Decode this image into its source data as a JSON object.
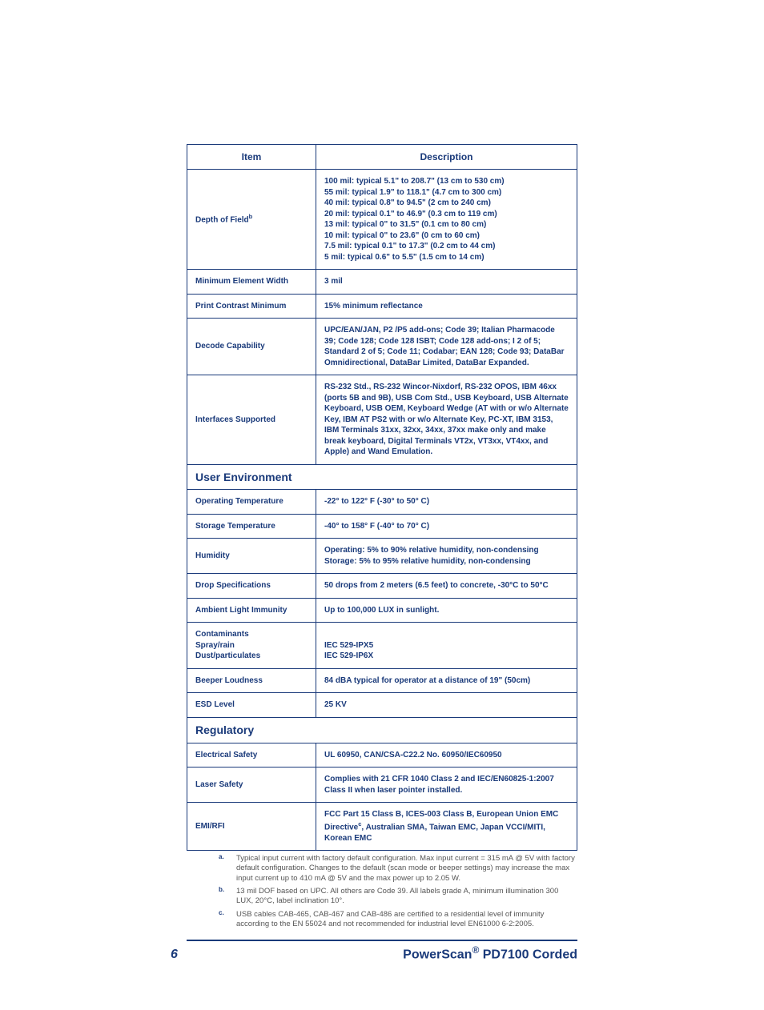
{
  "colors": {
    "brand": "#1a3a7a",
    "footnote_text": "#555555",
    "border": "#1a3a7a",
    "bg": "#ffffff"
  },
  "table": {
    "header": {
      "item": "Item",
      "description": "Description"
    },
    "rows": [
      {
        "item_html": "Depth of Field<sup>b</sup>",
        "desc_html": "100 mil: typical 5.1\" to 208.7\" (13 cm to 530 cm)<br>55 mil: typical 1.9\" to 118.1\" (4.7 cm to 300 cm)<br>40 mil: typical 0.8\" to 94.5\" (2 cm to 240 cm)<br>20 mil: typical 0.1\" to 46.9\" (0.3 cm to 119 cm)<br>13 mil: typical 0\" to 31.5\" (0.1 cm to 80 cm)<br>10 mil: typical 0\" to 23.6\" (0 cm to 60 cm)<br>7.5 mil: typical 0.1\" to 17.3\" (0.2 cm to 44 cm)<br>5 mil: typical 0.6\" to 5.5\" (1.5 cm to 14 cm)"
      },
      {
        "item": "Minimum Element Width",
        "desc": "3 mil"
      },
      {
        "item": "Print Contrast Minimum",
        "desc": "15% minimum reflectance"
      },
      {
        "item": "Decode Capability",
        "desc": "UPC/EAN/JAN, P2 /P5 add-ons; Code 39; Italian Pharmacode 39; Code 128; Code 128 ISBT; Code 128 add-ons; I 2 of 5; Standard 2 of 5; Code 11; Codabar; EAN 128; Code 93; DataBar Omnidirectional, DataBar Limited, DataBar Expanded."
      },
      {
        "item": "Interfaces Supported",
        "desc": "RS-232 Std., RS-232 Wincor-Nixdorf, RS-232 OPOS, IBM 46xx (ports 5B and 9B), USB Com Std., USB Keyboard, USB Alternate Keyboard, USB OEM, Keyboard Wedge (AT with or w/o Alternate Key, IBM AT PS2 with or w/o Alternate Key, PC-XT, IBM 3153, IBM Terminals 31xx, 32xx, 34xx, 37xx make only and make break keyboard, Digital Terminals VT2x, VT3xx, VT4xx, and Apple) and Wand Emulation."
      },
      {
        "section": "User Environment"
      },
      {
        "item": "Operating Temperature",
        "desc": "-22° to 122° F (-30° to 50° C)"
      },
      {
        "item": "Storage Temperature",
        "desc": "-40° to 158° F (-40° to 70° C)"
      },
      {
        "item": "Humidity",
        "desc_html": "Operating: 5% to 90% relative humidity, non-condensing<br>Storage: 5% to 95% relative humidity, non-condensing"
      },
      {
        "item": "Drop Specifications",
        "desc": "50 drops from 2 meters (6.5 feet) to concrete, -30°C to 50°C"
      },
      {
        "item": "Ambient Light Immunity",
        "desc": "Up to 100,000 LUX in sunlight."
      },
      {
        "item_html": "Contaminants<br>Spray/rain<br>Dust/particulates",
        "desc_html": "<br>IEC 529-IPX5<br>IEC 529-IP6X"
      },
      {
        "item": "Beeper Loudness",
        "desc": "84 dBA typical for operator at a distance of 19\" (50cm)"
      },
      {
        "item": "ESD Level",
        "desc": "25 KV"
      },
      {
        "section": "Regulatory"
      },
      {
        "item": "Electrical Safety",
        "desc": "UL 60950, CAN/CSA-C22.2 No. 60950/IEC60950"
      },
      {
        "item": "Laser Safety",
        "desc": "Complies with 21 CFR 1040 Class 2 and IEC/EN60825-1:2007 Class II when laser pointer installed."
      },
      {
        "item": "EMI/RFI",
        "desc_html": "FCC Part 15 Class B, ICES-003 Class B, European Union EMC Directive<sup>c</sup>, Australian SMA, Taiwan EMC, Japan VCCI/MITI, Korean EMC"
      }
    ]
  },
  "footnotes": [
    {
      "marker": "a.",
      "text": "Typical input current with factory default configuration. Max input current = 315 mA @ 5V with factory default configuration. Changes to the default (scan mode or beeper settings) may increase the max input current up to 410 mA @ 5V and the max power up to 2.05 W."
    },
    {
      "marker": "b.",
      "text": "13 mil DOF based on UPC. All others are Code 39. All labels grade A, minimum illumination 300 LUX, 20°C, label inclination 10°."
    },
    {
      "marker": "c.",
      "text": "USB cables CAB-465, CAB-467 and CAB-486 are certified to a residential level of immunity according to the EN 55024 and not recommended for industrial level EN61000 6-2:2005."
    }
  ],
  "footer": {
    "page_number": "6",
    "title_html": "PowerScan<sup>®</sup> PD7100 Corded"
  }
}
